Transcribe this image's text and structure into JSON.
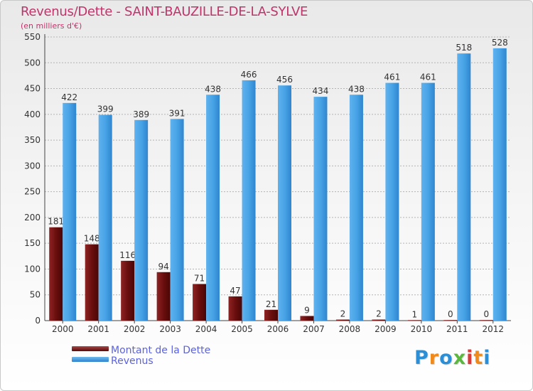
{
  "chart_data": {
    "type": "bar",
    "title": "Revenus/Dette - SAINT-BAUZILLE-DE-LA-SYLVE",
    "subtitle": "(en milliers d'€)",
    "categories": [
      "2000",
      "2001",
      "2002",
      "2003",
      "2004",
      "2005",
      "2006",
      "2007",
      "2008",
      "2009",
      "2010",
      "2011",
      "2012"
    ],
    "series": [
      {
        "name": "Montant de la Dette",
        "color": "#6a0e0e",
        "values": [
          181,
          148,
          116,
          94,
          71,
          47,
          21,
          9,
          2,
          2,
          1,
          0,
          0
        ],
        "labels": [
          "181",
          "148",
          "116",
          "94",
          "71",
          "47",
          "21",
          "9",
          "2",
          "2",
          "1",
          "0",
          "0"
        ]
      },
      {
        "name": "Revenus",
        "color": "#3d9be0",
        "values": [
          422,
          399,
          389,
          391,
          438,
          466,
          456,
          434,
          438,
          461,
          461,
          518,
          528
        ],
        "labels": [
          "422",
          "399",
          "389",
          "391",
          "438",
          "466",
          "456",
          "434",
          "438",
          "461",
          "461",
          "518",
          "528"
        ]
      }
    ],
    "ylim": [
      0,
      550
    ],
    "yticks": [
      0,
      50,
      100,
      150,
      200,
      250,
      300,
      350,
      400,
      450,
      500,
      550
    ],
    "ytick_labels": [
      "0",
      "50",
      "100",
      "150",
      "200",
      "250",
      "300",
      "350",
      "400",
      "450",
      "500",
      "550"
    ],
    "grid": true,
    "legend_position": "bottom-left"
  },
  "branding": {
    "letters": [
      "P",
      "r",
      "o",
      "x",
      "i",
      "t",
      "i"
    ],
    "colors": [
      "#2a8fd6",
      "#f08a1c",
      "#2a8fd6",
      "#5ab83c",
      "#d83a3a",
      "#f08a1c",
      "#2a8fd6"
    ]
  },
  "colors": {
    "title": "#c1336b",
    "legend_text": "#5b62e0",
    "axis_text": "#333333"
  }
}
